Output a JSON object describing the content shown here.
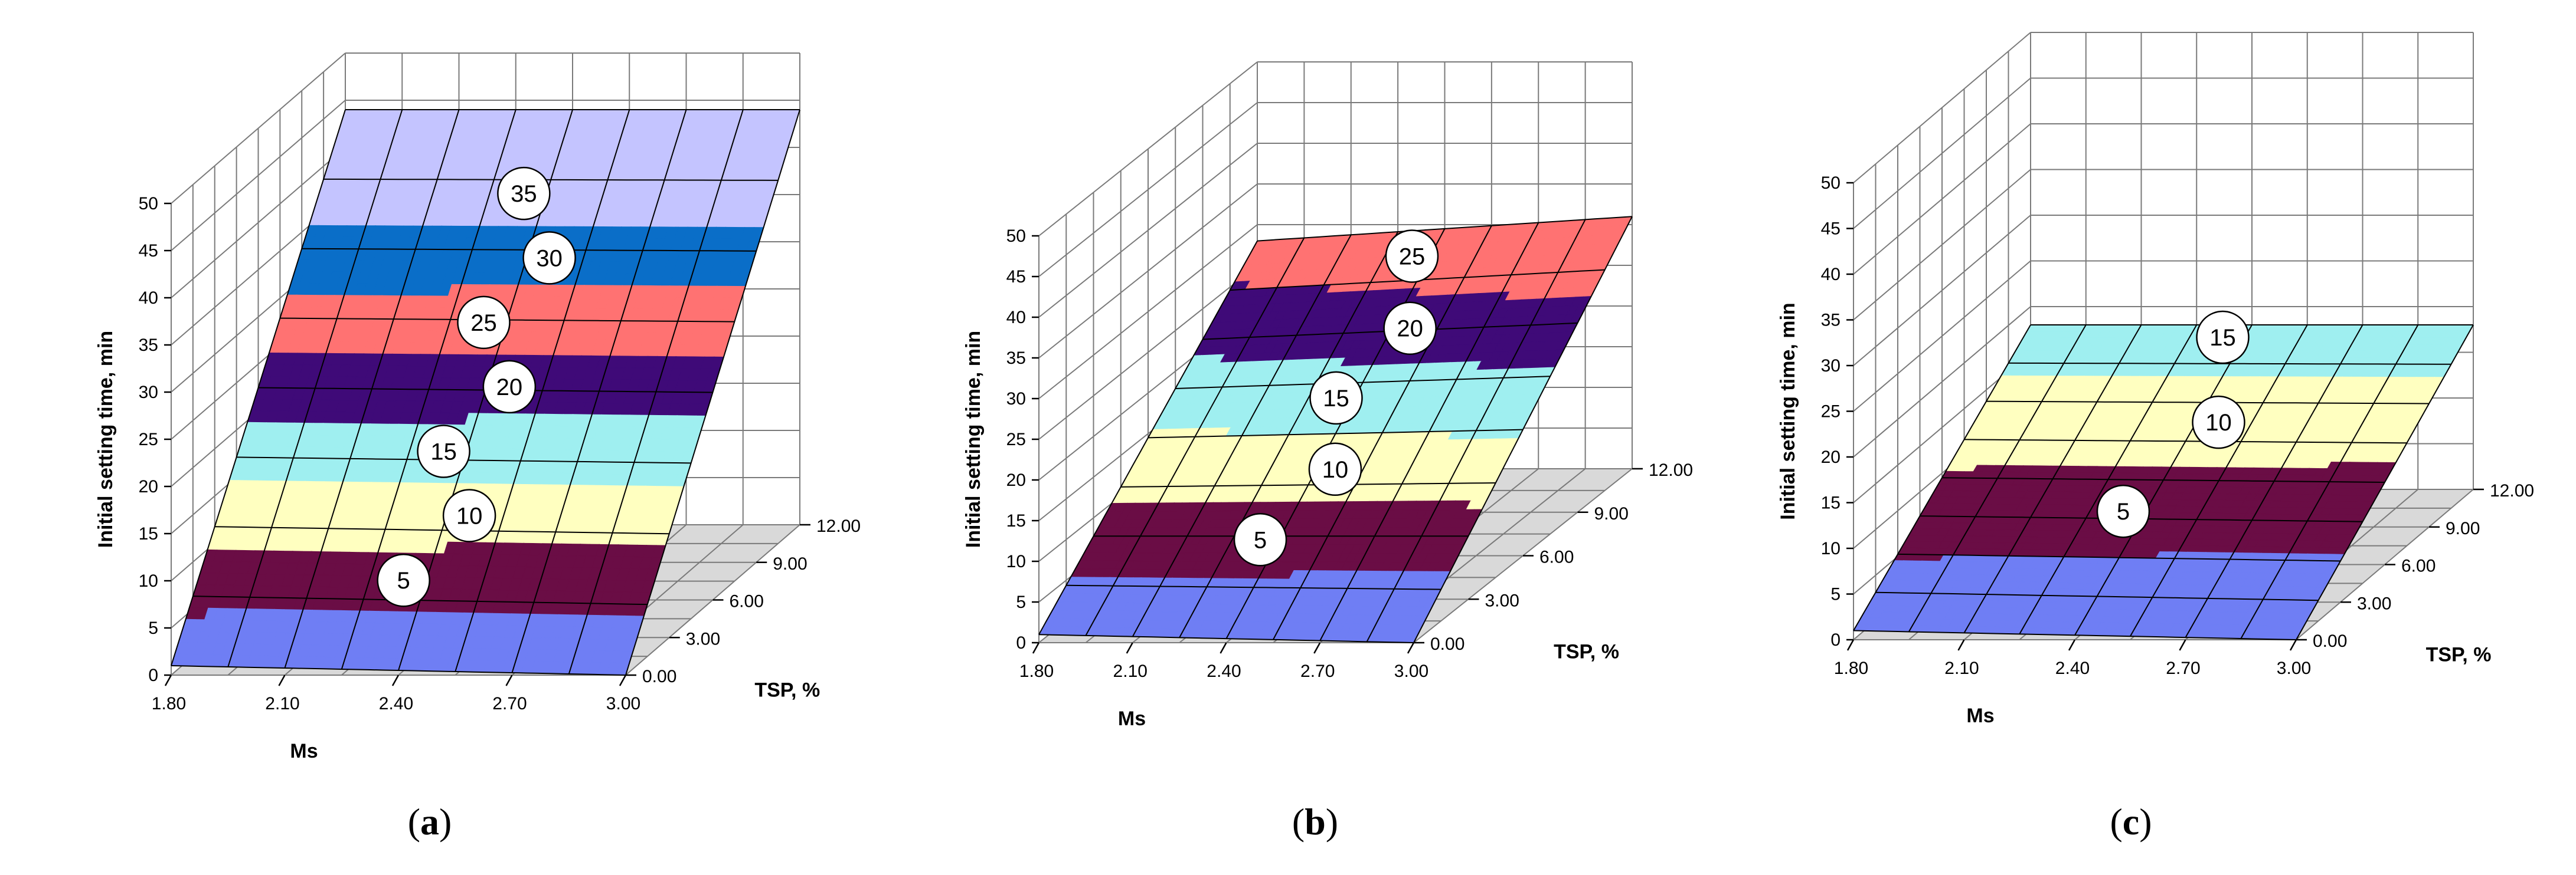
{
  "chart_data": [
    {
      "type": "surface3d",
      "panel_label": "a",
      "zlabel": "Initial setting time, min",
      "xlabel": "Ms",
      "ylabel": "TSP, %",
      "x_ticks": [
        "1.80",
        "2.10",
        "2.40",
        "2.70",
        "3.00"
      ],
      "y_ticks": [
        "0.00",
        "3.00",
        "6.00",
        "9.00",
        "12.00"
      ],
      "z_ticks": [
        "0",
        "5",
        "10",
        "15",
        "20",
        "25",
        "30",
        "35",
        "40",
        "45",
        "50"
      ],
      "xlim": [
        1.8,
        3.0
      ],
      "ylim": [
        0,
        12
      ],
      "zlim": [
        0,
        50
      ],
      "corner_values": {
        "ms1.8_tsp0": 1,
        "ms3.0_tsp0": 0,
        "ms1.8_tsp12": 44,
        "ms3.0_tsp12": 44
      },
      "contour_levels": [
        5,
        10,
        15,
        20,
        25,
        30,
        35
      ],
      "contour_labels": [
        "5",
        "10",
        "15",
        "20",
        "25",
        "30",
        "35"
      ]
    },
    {
      "type": "surface3d",
      "panel_label": "b",
      "zlabel": "Initial setting time, min",
      "xlabel": "Ms",
      "ylabel": "TSP, %",
      "x_ticks": [
        "1.80",
        "2.10",
        "2.40",
        "2.70",
        "3.00"
      ],
      "y_ticks": [
        "0.00",
        "3.00",
        "6.00",
        "9.00",
        "12.00"
      ],
      "z_ticks": [
        "0",
        "5",
        "10",
        "15",
        "20",
        "25",
        "30",
        "35",
        "40",
        "45",
        "50"
      ],
      "xlim": [
        1.8,
        3.0
      ],
      "ylim": [
        0,
        12
      ],
      "zlim": [
        0,
        50
      ],
      "corner_values": {
        "ms1.8_tsp0": 1,
        "ms3.0_tsp0": 0,
        "ms1.8_tsp12": 28,
        "ms3.0_tsp12": 31
      },
      "contour_levels": [
        5,
        10,
        15,
        20,
        25
      ],
      "contour_labels": [
        "5",
        "10",
        "15",
        "20",
        "25"
      ]
    },
    {
      "type": "surface3d",
      "panel_label": "c",
      "zlabel": "Initial setting time, min",
      "xlabel": "Ms",
      "ylabel": "TSP, %",
      "x_ticks": [
        "1.80",
        "2.10",
        "2.40",
        "2.70",
        "3.00"
      ],
      "y_ticks": [
        "0.00",
        "3.00",
        "6.00",
        "9.00",
        "12.00"
      ],
      "z_ticks": [
        "0",
        "5",
        "10",
        "15",
        "20",
        "25",
        "30",
        "35",
        "40",
        "45",
        "50"
      ],
      "xlim": [
        1.8,
        3.0
      ],
      "ylim": [
        0,
        12
      ],
      "zlim": [
        0,
        50
      ],
      "corner_values": {
        "ms1.8_tsp0": 1,
        "ms3.0_tsp0": 0,
        "ms1.8_tsp12": 18,
        "ms3.0_tsp12": 18
      },
      "contour_levels": [
        5,
        10,
        15
      ],
      "contour_labels": [
        "5",
        "10",
        "15"
      ]
    }
  ],
  "colors": {
    "band_0": "#6f7ef4",
    "band_1": "#6a0d45",
    "band_2": "#ffffc0",
    "band_3": "#9feff0",
    "band_4": "#3f0a78",
    "band_5": "#ff7272",
    "band_6": "#0a6ec8",
    "band_7": "#c4c4ff",
    "floor": "#d9d9d9",
    "grid": "#7a7a7a"
  }
}
